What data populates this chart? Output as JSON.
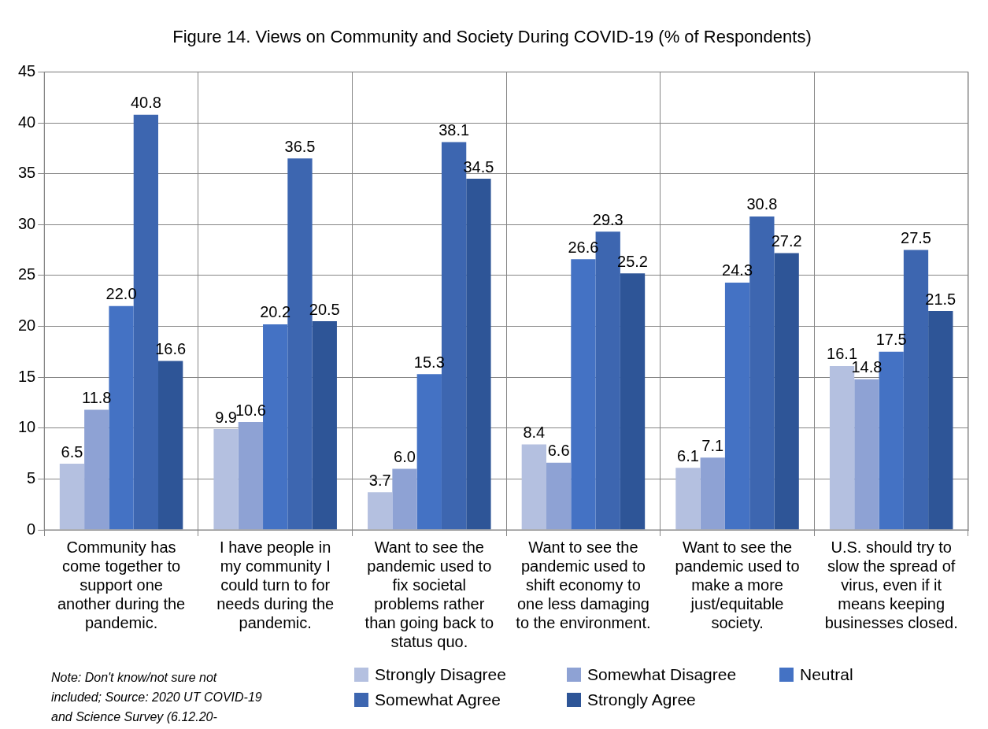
{
  "chart_data": {
    "type": "bar",
    "title": "Figure 14. Views on Community and Society During COVID-19 (% of Respondents)",
    "categories": [
      "Community has come together to support one another during the pandemic.",
      "I have people in my community I could turn to for needs during the pandemic.",
      "Want to see the pandemic used to fix societal problems rather than going back to status quo.",
      "Want to see the pandemic used to shift economy to one less damaging to the environment.",
      "Want to see the pandemic used to make a more just/equitable society.",
      "U.S. should try to slow the spread of virus, even if it means keeping businesses closed."
    ],
    "series": [
      {
        "name": "Strongly Disagree",
        "color": "#b4c0e0",
        "values": [
          6.5,
          9.9,
          3.7,
          8.4,
          6.1,
          16.1
        ],
        "value_labels": [
          "6.5",
          "9.9",
          "3.7",
          "8.4",
          "6.1",
          "16.1"
        ]
      },
      {
        "name": "Somewhat Disagree",
        "color": "#8ea2d4",
        "values": [
          11.8,
          10.6,
          6.0,
          6.6,
          7.1,
          14.8
        ],
        "value_labels": [
          "11.8",
          "10.6",
          "6.0",
          "6.6",
          "7.1",
          "14.8"
        ]
      },
      {
        "name": "Neutral",
        "color": "#4472c4",
        "values": [
          22.0,
          20.2,
          15.3,
          26.6,
          24.3,
          17.5
        ],
        "value_labels": [
          "22.0",
          "20.2",
          "15.3",
          "26.6",
          "24.3",
          "17.5"
        ]
      },
      {
        "name": "Somewhat Agree",
        "color": "#3d66b0",
        "values": [
          40.8,
          36.5,
          38.1,
          29.3,
          30.8,
          27.5
        ],
        "value_labels": [
          "40.8",
          "36.5",
          "38.1",
          "29.3",
          "30.8",
          "27.5"
        ]
      },
      {
        "name": "Strongly Agree",
        "color": "#2e5597",
        "values": [
          16.6,
          20.5,
          34.5,
          25.2,
          27.2,
          21.5
        ],
        "value_labels": [
          "16.6",
          "20.5",
          "34.5",
          "25.2",
          "27.2",
          "21.5"
        ]
      }
    ],
    "ylim": [
      0,
      45
    ],
    "yticks": [
      0,
      5,
      10,
      15,
      20,
      25,
      30,
      35,
      40,
      45
    ],
    "grid": true,
    "legend": "bottom",
    "annotations": [
      "Note: Don't know/not sure not included; Source: 2020 UT COVID-19 and Science Survey (6.12.20-"
    ]
  }
}
